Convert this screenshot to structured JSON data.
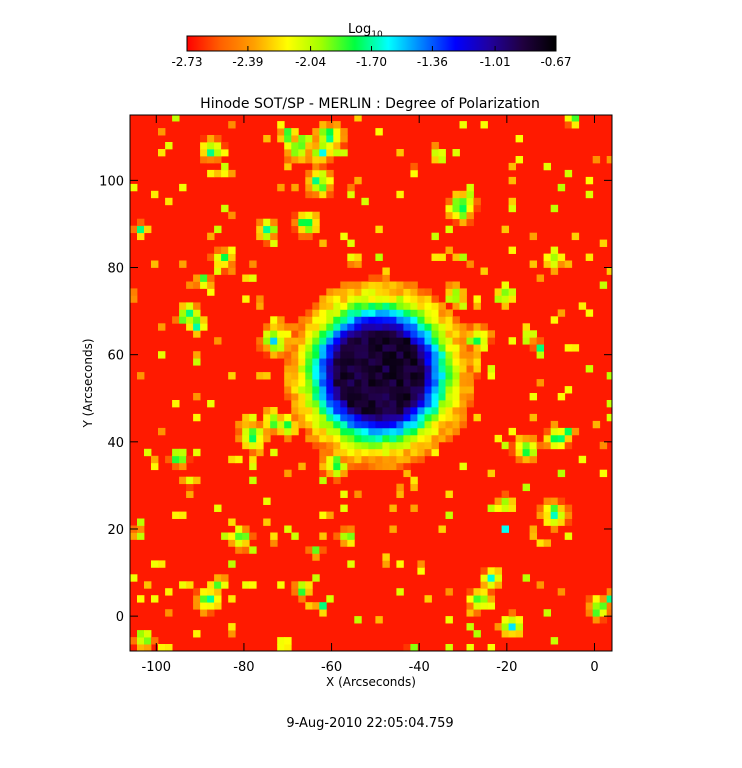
{
  "chart_data": {
    "type": "heatmap",
    "title": "Hinode SOT/SP - MERLIN : Degree of Polarization",
    "xlabel": "X (Arcseconds)",
    "ylabel": "Y (Arcseconds)",
    "xlim": [
      -106,
      4
    ],
    "ylim": [
      -8,
      115
    ],
    "x_ticks": [
      -100,
      -80,
      -60,
      -40,
      -20,
      0
    ],
    "y_ticks": [
      0,
      20,
      40,
      60,
      80,
      100
    ],
    "colorbar": {
      "label_main": "Log",
      "label_sub": "10",
      "range": [
        -2.73,
        -0.67
      ],
      "ticks": [
        "-2.73",
        "-2.39",
        "-2.04",
        "-1.70",
        "-1.36",
        "-1.01",
        "-0.67"
      ],
      "colormap": [
        "#ff0000",
        "#ff6000",
        "#ffa000",
        "#ffff00",
        "#a0ff00",
        "#00ff40",
        "#00ffff",
        "#0080ff",
        "#0000ff",
        "#2000a0",
        "#200040",
        "#000000"
      ]
    },
    "features": {
      "umbra_center": [
        -50,
        55
      ],
      "umbra_radius": 10,
      "background_level": -2.7
    },
    "timestamp": "9-Aug-2010 22:05:04.759"
  }
}
